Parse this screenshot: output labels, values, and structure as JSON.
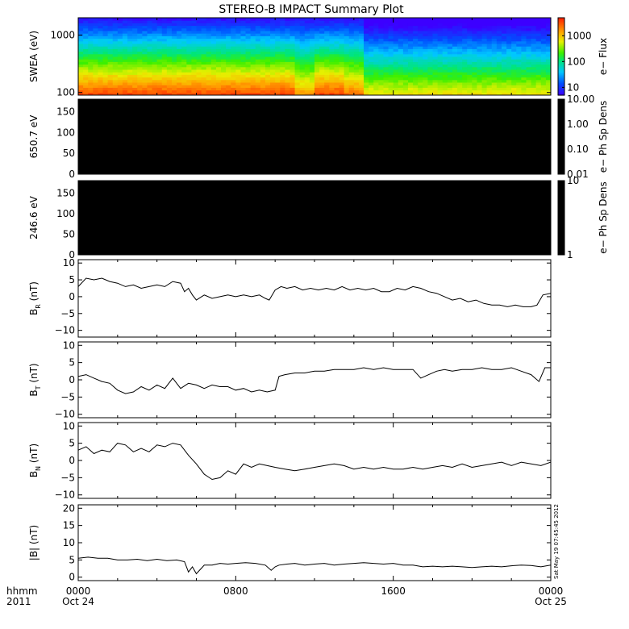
{
  "title": "STEREO-B IMPACT Summary Plot",
  "stamp": "Sat May 19 07:45:45 2012",
  "colors": {
    "ink": "#000000",
    "background": "#ffffff",
    "spectrogram_high": "#ff3300",
    "spectrogram_low": "#3300ff"
  },
  "time_axis": {
    "label_left_top": "hhmm",
    "label_left_bottom": "2011",
    "range_hours": [
      0,
      24
    ],
    "ticks": [
      {
        "hour": 0,
        "label": "0000",
        "sub": "Oct 24"
      },
      {
        "hour": 8,
        "label": "0800",
        "sub": ""
      },
      {
        "hour": 16,
        "label": "1600",
        "sub": ""
      },
      {
        "hour": 24,
        "label": "0000",
        "sub": "Oct 25"
      }
    ]
  },
  "chart_data": [
    {
      "id": "swea",
      "type": "heatmap",
      "ylabel": "SWEA (eV)",
      "yscale": "log",
      "ylim": [
        90,
        2000
      ],
      "yticks": [
        {
          "v": 100,
          "label": "100"
        },
        {
          "v": 1000,
          "label": "1000"
        }
      ],
      "colorbar": {
        "label": "e− Flux",
        "scale": "log",
        "range": [
          5,
          5000
        ],
        "ticks": [
          {
            "v": 10,
            "label": "10"
          },
          {
            "v": 100,
            "label": "100"
          },
          {
            "v": 1000,
            "label": "1000"
          }
        ],
        "colormap": "rainbow"
      },
      "description_segments": [
        {
          "from_hour": 0,
          "to_hour": 11,
          "low_energy_flux": "high",
          "note": "orange-red at low energies"
        },
        {
          "from_hour": 11,
          "to_hour": 14.5,
          "low_energy_flux": "high",
          "note": "dip near 11-12 h"
        },
        {
          "from_hour": 14.5,
          "to_hour": 24,
          "low_energy_flux": "moderate",
          "note": "yellow at low energies"
        }
      ]
    },
    {
      "id": "ph650",
      "type": "heatmap",
      "ylabel": "650.7 eV",
      "ylim": [
        0,
        180
      ],
      "yticks": [
        {
          "v": 0,
          "label": "0"
        },
        {
          "v": 50,
          "label": "50"
        },
        {
          "v": 100,
          "label": "100"
        },
        {
          "v": 150,
          "label": "150"
        }
      ],
      "colorbar": {
        "label": "e− Ph Sp Dens",
        "scale": "log",
        "range": [
          0.01,
          10
        ],
        "ticks": [
          {
            "v": 0.01,
            "label": "0.01"
          },
          {
            "v": 0.1,
            "label": "0.10"
          },
          {
            "v": 1,
            "label": "1.00"
          },
          {
            "v": 10,
            "label": "10.00"
          }
        ],
        "colormap": "black"
      },
      "fill": "#000000"
    },
    {
      "id": "ph246",
      "type": "heatmap",
      "ylabel": "246.6 eV",
      "ylim": [
        0,
        180
      ],
      "yticks": [
        {
          "v": 0,
          "label": "0"
        },
        {
          "v": 50,
          "label": "50"
        },
        {
          "v": 100,
          "label": "100"
        },
        {
          "v": 150,
          "label": "150"
        }
      ],
      "colorbar": {
        "label": "e− Ph Sp Dens",
        "scale": "log",
        "range": [
          1,
          10
        ],
        "ticks": [
          {
            "v": 1,
            "label": "1"
          },
          {
            "v": 10,
            "label": "10"
          }
        ],
        "colormap": "black"
      },
      "fill": "#000000"
    },
    {
      "id": "br",
      "type": "line",
      "ylabel_base": "B",
      "ylabel_sub": "R",
      "ylabel_unit": " (nT)",
      "ylim": [
        -12,
        11
      ],
      "yticks": [
        {
          "v": -10,
          "label": "−10"
        },
        {
          "v": -5,
          "label": "−5"
        },
        {
          "v": 0,
          "label": "0"
        },
        {
          "v": 5,
          "label": "5"
        },
        {
          "v": 10,
          "label": "10"
        }
      ],
      "x": [
        0,
        0.4,
        0.8,
        1.2,
        1.6,
        2.0,
        2.4,
        2.8,
        3.2,
        3.6,
        4.0,
        4.4,
        4.8,
        5.2,
        5.4,
        5.6,
        5.8,
        6.0,
        6.4,
        6.8,
        7.2,
        7.6,
        8.0,
        8.4,
        8.8,
        9.2,
        9.5,
        9.7,
        10.0,
        10.3,
        10.6,
        11.0,
        11.4,
        11.8,
        12.2,
        12.6,
        13.0,
        13.4,
        13.8,
        14.2,
        14.6,
        15.0,
        15.4,
        15.8,
        16.2,
        16.6,
        17.0,
        17.4,
        17.8,
        18.2,
        18.6,
        19.0,
        19.4,
        19.8,
        20.2,
        20.6,
        21.0,
        21.4,
        21.8,
        22.2,
        22.6,
        23.0,
        23.3,
        23.6,
        24.0
      ],
      "y": [
        3.0,
        5.5,
        5.0,
        5.5,
        4.5,
        4.0,
        3.0,
        3.5,
        2.5,
        3.0,
        3.5,
        3.0,
        4.5,
        4.0,
        1.5,
        2.5,
        0.5,
        -1.0,
        0.5,
        -0.5,
        0.0,
        0.5,
        0.0,
        0.5,
        0.0,
        0.5,
        -0.5,
        -1.0,
        2.0,
        3.0,
        2.5,
        3.0,
        2.0,
        2.5,
        2.0,
        2.5,
        2.0,
        3.0,
        2.0,
        2.5,
        2.0,
        2.5,
        1.5,
        1.5,
        2.5,
        2.0,
        3.0,
        2.5,
        1.5,
        1.0,
        0.0,
        -1.0,
        -0.5,
        -1.5,
        -1.0,
        -2.0,
        -2.5,
        -2.5,
        -3.0,
        -2.5,
        -3.0,
        -3.0,
        -2.5,
        0.5,
        1.0
      ]
    },
    {
      "id": "bt",
      "type": "line",
      "ylabel_base": "B",
      "ylabel_sub": "T",
      "ylabel_unit": " (nT)",
      "ylim": [
        -11,
        11
      ],
      "yticks": [
        {
          "v": -10,
          "label": "−10"
        },
        {
          "v": -5,
          "label": "−5"
        },
        {
          "v": 0,
          "label": "0"
        },
        {
          "v": 5,
          "label": "5"
        },
        {
          "v": 10,
          "label": "10"
        }
      ],
      "x": [
        0,
        0.4,
        0.8,
        1.2,
        1.6,
        2.0,
        2.4,
        2.8,
        3.2,
        3.6,
        4.0,
        4.4,
        4.8,
        5.2,
        5.6,
        6.0,
        6.4,
        6.8,
        7.2,
        7.6,
        8.0,
        8.4,
        8.8,
        9.2,
        9.6,
        10.0,
        10.2,
        10.5,
        11.0,
        11.5,
        12.0,
        12.5,
        13.0,
        13.5,
        14.0,
        14.5,
        15.0,
        15.5,
        16.0,
        16.5,
        17.0,
        17.4,
        17.8,
        18.2,
        18.6,
        19.0,
        19.5,
        20.0,
        20.5,
        21.0,
        21.5,
        22.0,
        22.5,
        23.0,
        23.2,
        23.4,
        23.7,
        24.0
      ],
      "y": [
        1.0,
        1.5,
        0.5,
        -0.5,
        -1.0,
        -3.0,
        -4.0,
        -3.5,
        -2.0,
        -3.0,
        -1.5,
        -2.5,
        0.5,
        -2.5,
        -1.0,
        -1.5,
        -2.5,
        -1.5,
        -2.0,
        -2.0,
        -3.0,
        -2.5,
        -3.5,
        -3.0,
        -3.5,
        -3.0,
        1.0,
        1.5,
        2.0,
        2.0,
        2.5,
        2.5,
        3.0,
        3.0,
        3.0,
        3.5,
        3.0,
        3.5,
        3.0,
        3.0,
        3.0,
        0.5,
        1.5,
        2.5,
        3.0,
        2.5,
        3.0,
        3.0,
        3.5,
        3.0,
        3.0,
        3.5,
        2.5,
        1.5,
        0.5,
        -0.5,
        3.5,
        3.5
      ]
    },
    {
      "id": "bn",
      "type": "line",
      "ylabel_base": "B",
      "ylabel_sub": "N",
      "ylabel_unit": " (nT)",
      "ylim": [
        -11,
        11
      ],
      "yticks": [
        {
          "v": -10,
          "label": "−10"
        },
        {
          "v": -5,
          "label": "−5"
        },
        {
          "v": 0,
          "label": "0"
        },
        {
          "v": 5,
          "label": "5"
        },
        {
          "v": 10,
          "label": "10"
        }
      ],
      "x": [
        0,
        0.4,
        0.8,
        1.2,
        1.6,
        2.0,
        2.4,
        2.8,
        3.2,
        3.6,
        4.0,
        4.4,
        4.8,
        5.2,
        5.6,
        6.0,
        6.4,
        6.8,
        7.2,
        7.6,
        8.0,
        8.4,
        8.8,
        9.2,
        9.6,
        10.0,
        10.5,
        11.0,
        11.5,
        12.0,
        12.5,
        13.0,
        13.5,
        14.0,
        14.5,
        15.0,
        15.5,
        16.0,
        16.5,
        17.0,
        17.5,
        18.0,
        18.5,
        19.0,
        19.5,
        20.0,
        20.5,
        21.0,
        21.5,
        22.0,
        22.5,
        23.0,
        23.5,
        24.0
      ],
      "y": [
        3.0,
        4.0,
        2.0,
        3.0,
        2.5,
        5.0,
        4.5,
        2.5,
        3.5,
        2.5,
        4.5,
        4.0,
        5.0,
        4.5,
        1.5,
        -1.0,
        -4.0,
        -5.5,
        -5.0,
        -3.0,
        -4.0,
        -1.0,
        -2.0,
        -1.0,
        -1.5,
        -2.0,
        -2.5,
        -3.0,
        -2.5,
        -2.0,
        -1.5,
        -1.0,
        -1.5,
        -2.5,
        -2.0,
        -2.5,
        -2.0,
        -2.5,
        -2.5,
        -2.0,
        -2.5,
        -2.0,
        -1.5,
        -2.0,
        -1.0,
        -2.0,
        -1.5,
        -1.0,
        -0.5,
        -1.5,
        -0.5,
        -1.0,
        -1.5,
        -0.5
      ]
    },
    {
      "id": "btot",
      "type": "line",
      "ylabel": "|B| (nT)",
      "ylim": [
        -1,
        21
      ],
      "yticks": [
        {
          "v": 0,
          "label": "0"
        },
        {
          "v": 5,
          "label": "5"
        },
        {
          "v": 10,
          "label": "10"
        },
        {
          "v": 15,
          "label": "15"
        },
        {
          "v": 20,
          "label": "20"
        }
      ],
      "x": [
        0,
        0.5,
        1.0,
        1.5,
        2.0,
        2.5,
        3.0,
        3.5,
        4.0,
        4.5,
        5.0,
        5.4,
        5.6,
        5.8,
        6.0,
        6.4,
        6.8,
        7.2,
        7.6,
        8.0,
        8.5,
        9.0,
        9.5,
        9.8,
        10.0,
        10.2,
        10.6,
        11.0,
        11.5,
        12.0,
        12.5,
        13.0,
        13.5,
        14.0,
        14.5,
        15.0,
        15.5,
        16.0,
        16.5,
        17.0,
        17.5,
        18.0,
        18.5,
        19.0,
        19.5,
        20.0,
        20.5,
        21.0,
        21.5,
        22.0,
        22.5,
        23.0,
        23.5,
        24.0
      ],
      "y": [
        5.5,
        5.8,
        5.5,
        5.5,
        5.0,
        5.0,
        5.2,
        4.8,
        5.2,
        4.8,
        5.0,
        4.5,
        1.5,
        3.0,
        1.0,
        3.5,
        3.5,
        4.0,
        3.8,
        4.0,
        4.2,
        4.0,
        3.5,
        2.0,
        3.0,
        3.5,
        3.8,
        4.0,
        3.5,
        3.8,
        4.0,
        3.5,
        3.8,
        4.0,
        4.2,
        4.0,
        3.8,
        4.0,
        3.5,
        3.5,
        3.0,
        3.2,
        3.0,
        3.2,
        3.0,
        2.8,
        3.0,
        3.2,
        3.0,
        3.3,
        3.5,
        3.4,
        3.0,
        3.5
      ]
    }
  ]
}
